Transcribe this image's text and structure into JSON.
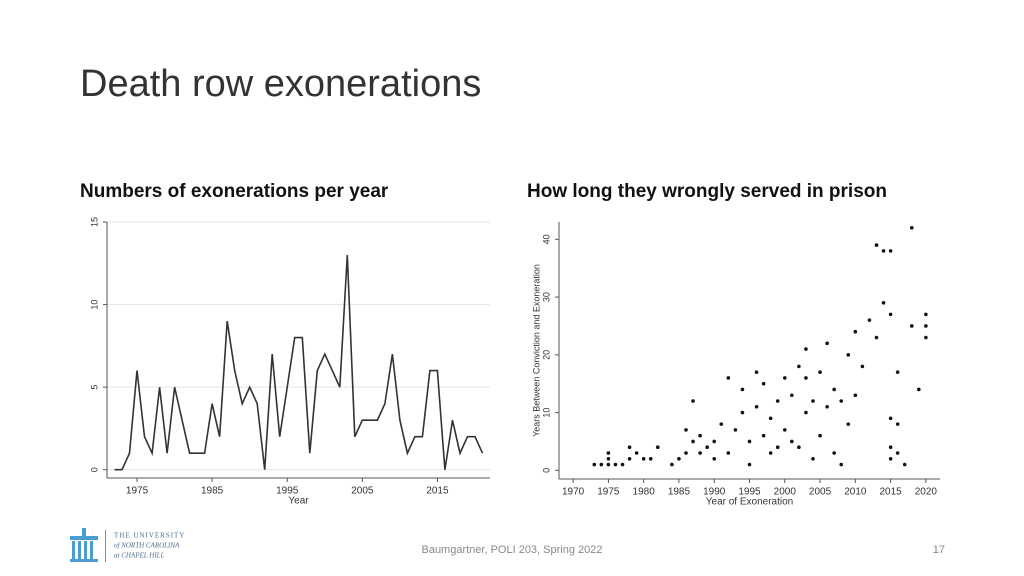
{
  "slide": {
    "title": "Death row exonerations",
    "footer": "Baumgartner, POLI 203, Spring 2022",
    "page": 17,
    "logo": [
      "THE UNIVERSITY",
      "of NORTH CAROLINA",
      "at CHAPEL HILL"
    ]
  },
  "chart_data": [
    {
      "type": "line",
      "title": "Numbers of exonerations per year",
      "xlabel": "Year",
      "color": "#333333",
      "grid": true,
      "x": [
        1972,
        1973,
        1974,
        1975,
        1976,
        1977,
        1978,
        1979,
        1980,
        1981,
        1982,
        1983,
        1984,
        1985,
        1986,
        1987,
        1988,
        1989,
        1990,
        1991,
        1992,
        1993,
        1994,
        1995,
        1996,
        1997,
        1998,
        1999,
        2000,
        2001,
        2002,
        2003,
        2004,
        2005,
        2006,
        2007,
        2008,
        2009,
        2010,
        2011,
        2012,
        2013,
        2014,
        2015,
        2016,
        2017,
        2018,
        2019,
        2020,
        2021
      ],
      "values": [
        0,
        0,
        1,
        6,
        2,
        1,
        5,
        1,
        5,
        3,
        1,
        1,
        1,
        4,
        2,
        9,
        6,
        4,
        5,
        4,
        0,
        7,
        2,
        5,
        8,
        8,
        1,
        6,
        7,
        6,
        5,
        13,
        2,
        3,
        3,
        3,
        4,
        7,
        3,
        1,
        2,
        2,
        6,
        6,
        0,
        3,
        1,
        2,
        2,
        1
      ],
      "xlim": [
        1971,
        2022
      ],
      "xticks": [
        1975,
        1985,
        1995,
        2005,
        2015
      ],
      "ylim": [
        -0.5,
        15
      ],
      "yticks": [
        0,
        5,
        10,
        15
      ]
    },
    {
      "type": "scatter",
      "title": "How long they wrongly served in prison",
      "xlabel": "Year of Exoneration",
      "ylabel": "Years Between Conviction and Exoneration",
      "color": "#111111",
      "x": [
        1973,
        1974,
        1975,
        1975,
        1976,
        1975,
        1977,
        1978,
        1978,
        1979,
        1980,
        1981,
        1982,
        1984,
        1985,
        1986,
        1986,
        1987,
        1987,
        1988,
        1988,
        1989,
        1990,
        1990,
        1991,
        1992,
        1992,
        1993,
        1994,
        1994,
        1995,
        1995,
        1996,
        1996,
        1997,
        1997,
        1998,
        1998,
        1999,
        1999,
        2000,
        2000,
        2001,
        2001,
        2002,
        2002,
        2003,
        2003,
        2003,
        2004,
        2004,
        2005,
        2005,
        2006,
        2006,
        2007,
        2007,
        2008,
        2008,
        2009,
        2009,
        2010,
        2010,
        2011,
        2012,
        2013,
        2013,
        2014,
        2014,
        2015,
        2015,
        2015,
        2015,
        2016,
        2016,
        2017,
        2018,
        2018,
        2019,
        2020,
        2020,
        2020,
        2016,
        2015
      ],
      "y": [
        1,
        1,
        1,
        2,
        1,
        3,
        1,
        2,
        4,
        3,
        2,
        2,
        4,
        1,
        2,
        3,
        7,
        5,
        12,
        3,
        6,
        4,
        2,
        5,
        8,
        16,
        3,
        7,
        10,
        14,
        1,
        5,
        11,
        17,
        6,
        15,
        3,
        9,
        12,
        4,
        7,
        16,
        5,
        13,
        18,
        4,
        21,
        10,
        16,
        2,
        12,
        6,
        17,
        22,
        11,
        14,
        3,
        1,
        12,
        20,
        8,
        13,
        24,
        18,
        26,
        23,
        39,
        38,
        29,
        27,
        38,
        9,
        4,
        17,
        3,
        1,
        42,
        25,
        14,
        23,
        27,
        25,
        8,
        2
      ],
      "xlim": [
        1968,
        2022
      ],
      "xticks": [
        1970,
        1975,
        1980,
        1985,
        1990,
        1995,
        2000,
        2005,
        2010,
        2015,
        2020
      ],
      "ylim": [
        -1.5,
        43
      ],
      "yticks": [
        0,
        10,
        20,
        30,
        40
      ]
    }
  ]
}
